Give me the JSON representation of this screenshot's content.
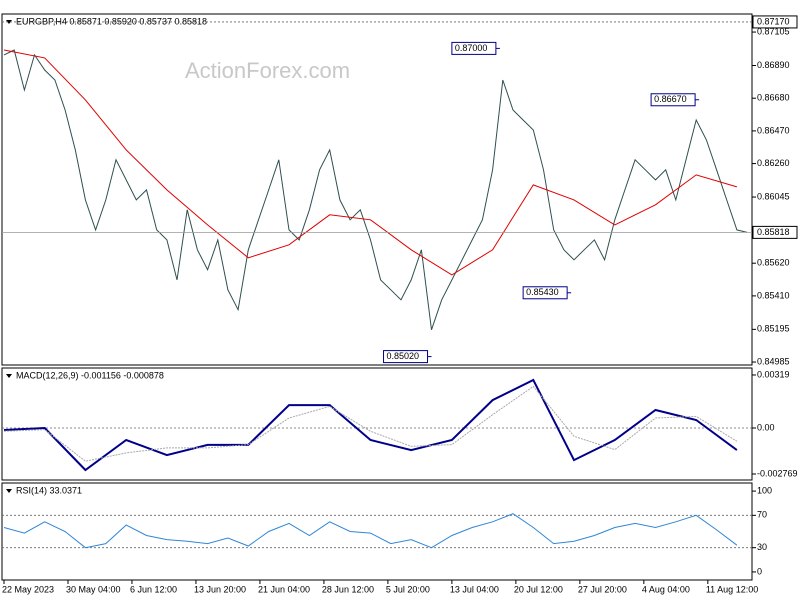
{
  "chart_data": [
    {
      "type": "line",
      "title": "EURGBP,H4  0.85871 0.85920 0.85737 0.85818",
      "watermark": "ActionForex.com",
      "xlim": [
        0,
        513
      ],
      "ylim": [
        0.84966,
        0.87221
      ],
      "yticks": [
        {
          "value": 0.8717,
          "label": "0.87170"
        },
        0.87105,
        {
          "value": 0.8689,
          "label": "0.86890"
        },
        {
          "value": 0.8668,
          "label": "0.86680"
        },
        {
          "value": 0.8647,
          "label": "0.86470"
        },
        {
          "value": 0.8626,
          "label": "0.86260"
        },
        0.86045,
        {
          "value": 0.8562,
          "label": "0.85620"
        },
        {
          "value": 0.8541,
          "label": "0.85410"
        },
        0.85195,
        0.84985
      ],
      "levels": [
        0.8717
      ],
      "last_price": 0.85818,
      "series": [
        {
          "name": "EURGBP",
          "color": "#2f4f4f",
          "x": [
            0,
            7,
            14,
            21,
            28,
            35,
            42,
            49,
            56,
            63,
            70,
            77,
            84,
            91,
            98,
            105,
            112,
            119,
            126,
            133,
            140,
            147,
            154,
            161,
            168,
            175,
            182,
            189,
            196,
            203,
            210,
            217,
            224,
            231,
            238,
            245,
            252,
            259,
            266,
            273,
            280,
            287,
            294,
            301,
            308,
            315,
            322,
            329,
            336,
            343,
            350,
            357,
            364,
            371,
            378,
            385,
            392,
            399,
            406,
            413,
            420,
            427,
            434,
            441,
            448,
            455,
            462,
            469,
            476,
            483,
            490,
            497,
            504,
            511
          ],
          "values": [
            0.86958,
            0.8699,
            0.86733,
            0.86958,
            0.86861,
            0.86797,
            0.86604,
            0.86348,
            0.86027,
            0.85834,
            0.86027,
            0.86284,
            0.86155,
            0.86027,
            0.86091,
            0.85834,
            0.8577,
            0.85513,
            0.85963,
            0.85706,
            0.85578,
            0.8577,
            0.85449,
            0.85321,
            0.85706,
            0.85899,
            0.86091,
            0.86284,
            0.85834,
            0.8577,
            0.85963,
            0.8622,
            0.86348,
            0.86027,
            0.85899,
            0.85963,
            0.8577,
            0.85513,
            0.85449,
            0.85385,
            0.85513,
            0.85706,
            0.85192,
            0.85385,
            0.85513,
            0.85642,
            0.8577,
            0.85899,
            0.8622,
            0.86797,
            0.86604,
            0.8654,
            0.86476,
            0.8622,
            0.85834,
            0.85706,
            0.85642,
            0.85706,
            0.8577,
            0.85642,
            0.85899,
            0.86091,
            0.86284,
            0.8622,
            0.86155,
            0.8622,
            0.86027,
            0.86284,
            0.8654,
            0.86412,
            0.8622,
            0.86027,
            0.85834,
            0.85818
          ]
        },
        {
          "name": "MA",
          "color": "#e00000",
          "x": [
            0,
            28,
            56,
            84,
            112,
            140,
            168,
            196,
            224,
            252,
            280,
            308,
            336,
            364,
            392,
            420,
            448,
            476,
            504
          ],
          "values": [
            0.8699,
            0.86939,
            0.86669,
            0.86348,
            0.86091,
            0.85866,
            0.85655,
            0.85738,
            0.85931,
            0.85899,
            0.85706,
            0.85545,
            0.85706,
            0.86123,
            0.86027,
            0.85866,
            0.85995,
            0.86187,
            0.8611
          ]
        }
      ],
      "annotations": [
        {
          "label": "0.87000",
          "x": 341,
          "value": 0.87
        },
        {
          "label": "0.86670",
          "x": 478,
          "value": 0.8667
        },
        {
          "label": "0.85430",
          "x": 390,
          "value": 0.8543
        },
        {
          "label": "0.85020",
          "x": 294,
          "value": 0.8502
        }
      ]
    },
    {
      "type": "line",
      "title": "MACD(12,26,9) -0.001156 -0.000878",
      "xlim": [
        0,
        513
      ],
      "ylim": [
        -0.00313,
        0.00361
      ],
      "yticks": [
        0.00319,
        {
          "value": 0,
          "label": "0.00"
        },
        -0.002769
      ],
      "levels": [
        0
      ],
      "series": [
        {
          "name": "MACD",
          "color": "#00008b",
          "x": [
            0,
            28,
            56,
            84,
            112,
            140,
            168,
            196,
            224,
            252,
            280,
            308,
            336,
            364,
            392,
            420,
            448,
            476,
            504
          ],
          "values": [
            -0.00012,
            0,
            -0.00253,
            -0.00072,
            -0.00163,
            -0.00102,
            -0.00102,
            0.00138,
            0.00138,
            -0.00072,
            -0.00133,
            -0.00072,
            0.00168,
            0.00289,
            -0.00193,
            -0.00072,
            0.00108,
            0.00048,
            -0.00133
          ]
        },
        {
          "name": "Signal",
          "color": "#a9a9a9",
          "x": [
            0,
            28,
            56,
            84,
            112,
            140,
            168,
            196,
            224,
            252,
            280,
            308,
            336,
            364,
            392,
            420,
            448,
            476,
            504
          ],
          "values": [
            -0.0002,
            -0.0001,
            -0.002,
            -0.0015,
            -0.0012,
            -0.0012,
            -0.001,
            0.0006,
            0.0013,
            -0.0002,
            -0.0011,
            -0.001,
            0.0008,
            0.0025,
            -0.0005,
            -0.0013,
            0.0006,
            0.0007,
            -0.0008
          ]
        }
      ]
    },
    {
      "type": "line",
      "title": "RSI(14) 33.0371",
      "xlim": [
        0,
        513
      ],
      "ylim": [
        -10,
        110
      ],
      "yticks": [
        100,
        70,
        30,
        0
      ],
      "levels": [
        70,
        30
      ],
      "xticks": [
        {
          "value": 0,
          "label": "22 May 2023"
        },
        {
          "value": 44,
          "label": "30 May 04:00"
        },
        {
          "value": 88,
          "label": "6 Jun 12:00"
        },
        {
          "value": 132,
          "label": "13 Jun 20:00"
        },
        {
          "value": 176,
          "label": "21 Jun 04:00"
        },
        {
          "value": 220,
          "label": "28 Jun 12:00"
        },
        {
          "value": 264,
          "label": "5 Jul 20:00"
        },
        {
          "value": 308,
          "label": "13 Jul 04:00"
        },
        {
          "value": 352,
          "label": "20 Jul 12:00"
        },
        {
          "value": 396,
          "label": "27 Jul 20:00"
        },
        {
          "value": 440,
          "label": "4 Aug 04:00"
        },
        {
          "value": 484,
          "label": "11 Aug 12:00"
        }
      ],
      "series": [
        {
          "name": "RSI",
          "color": "#2f86d8",
          "x": [
            0,
            14,
            28,
            42,
            56,
            70,
            84,
            98,
            112,
            126,
            140,
            154,
            168,
            182,
            196,
            210,
            224,
            238,
            252,
            266,
            280,
            294,
            308,
            322,
            336,
            350,
            364,
            378,
            392,
            406,
            420,
            434,
            448,
            462,
            476,
            490,
            504
          ],
          "values": [
            55,
            48,
            62,
            50,
            30,
            35,
            58,
            45,
            40,
            38,
            35,
            42,
            32,
            50,
            60,
            45,
            62,
            50,
            48,
            35,
            40,
            30,
            45,
            55,
            62,
            72,
            55,
            35,
            38,
            45,
            55,
            60,
            55,
            62,
            70,
            52,
            33
          ]
        }
      ]
    }
  ]
}
